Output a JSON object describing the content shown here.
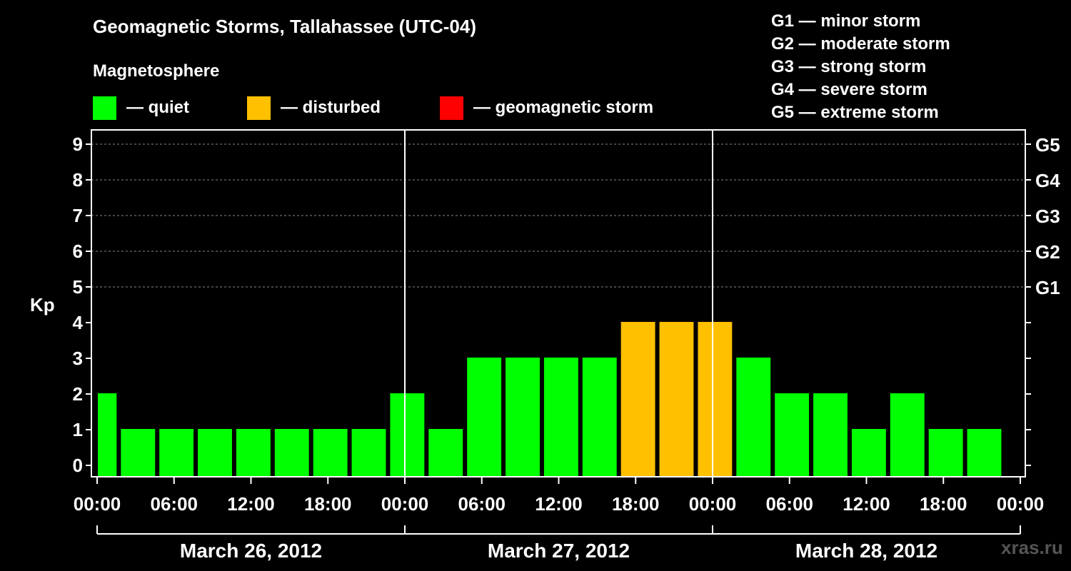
{
  "title": "Geomagnetic Storms, Tallahassee (UTC-04)",
  "magnetosphere_label": "Magnetosphere",
  "legend": [
    {
      "label": "— quiet",
      "color": "#00ff00"
    },
    {
      "label": "— disturbed",
      "color": "#ffc000"
    },
    {
      "label": "— geomagnetic storm",
      "color": "#ff0000"
    }
  ],
  "g_scale": [
    "G1 — minor storm",
    "G2 — moderate storm",
    "G3 — strong storm",
    "G4 — severe storm",
    "G5 — extreme storm"
  ],
  "watermark": "xras.ru",
  "colors": {
    "quiet": "#00ff00",
    "disturbed": "#ffc000",
    "storm": "#ff0000",
    "background": "#000000",
    "grid": "#888888"
  },
  "chart_data": {
    "type": "bar",
    "ylabel": "Kp",
    "ylim": [
      0,
      9
    ],
    "yticks": [
      "0",
      "1",
      "2",
      "3",
      "4",
      "5",
      "6",
      "7",
      "8",
      "9"
    ],
    "right_ticks": [
      {
        "kp": 5,
        "label": "G1"
      },
      {
        "kp": 6,
        "label": "G2"
      },
      {
        "kp": 7,
        "label": "G3"
      },
      {
        "kp": 8,
        "label": "G4"
      },
      {
        "kp": 9,
        "label": "G5"
      }
    ],
    "grid": "dashed at Kp 5-9",
    "x_tick_labels": [
      "00:00",
      "06:00",
      "12:00",
      "18:00",
      "00:00",
      "06:00",
      "12:00",
      "18:00",
      "00:00",
      "06:00",
      "12:00",
      "18:00",
      "00:00"
    ],
    "x_range_hours": [
      0,
      72
    ],
    "day_labels": [
      "March 26, 2012",
      "March 27, 2012",
      "March 28, 2012"
    ],
    "bars": [
      {
        "start_hour": 0,
        "end_hour": 1.8,
        "kp": 2,
        "status": "quiet"
      },
      {
        "start_hour": 1.8,
        "end_hour": 4.8,
        "kp": 1,
        "status": "quiet"
      },
      {
        "start_hour": 4.8,
        "end_hour": 7.8,
        "kp": 1,
        "status": "quiet"
      },
      {
        "start_hour": 7.8,
        "end_hour": 10.8,
        "kp": 1,
        "status": "quiet"
      },
      {
        "start_hour": 10.8,
        "end_hour": 13.8,
        "kp": 1,
        "status": "quiet"
      },
      {
        "start_hour": 13.8,
        "end_hour": 16.8,
        "kp": 1,
        "status": "quiet"
      },
      {
        "start_hour": 16.8,
        "end_hour": 19.8,
        "kp": 1,
        "status": "quiet"
      },
      {
        "start_hour": 19.8,
        "end_hour": 22.8,
        "kp": 1,
        "status": "quiet"
      },
      {
        "start_hour": 22.8,
        "end_hour": 25.8,
        "kp": 2,
        "status": "quiet"
      },
      {
        "start_hour": 25.8,
        "end_hour": 28.8,
        "kp": 1,
        "status": "quiet"
      },
      {
        "start_hour": 28.8,
        "end_hour": 31.8,
        "kp": 3,
        "status": "quiet"
      },
      {
        "start_hour": 31.8,
        "end_hour": 34.8,
        "kp": 3,
        "status": "quiet"
      },
      {
        "start_hour": 34.8,
        "end_hour": 37.8,
        "kp": 3,
        "status": "quiet"
      },
      {
        "start_hour": 37.8,
        "end_hour": 40.8,
        "kp": 3,
        "status": "quiet"
      },
      {
        "start_hour": 40.8,
        "end_hour": 43.8,
        "kp": 4,
        "status": "disturbed"
      },
      {
        "start_hour": 43.8,
        "end_hour": 46.8,
        "kp": 4,
        "status": "disturbed"
      },
      {
        "start_hour": 46.8,
        "end_hour": 49.8,
        "kp": 4,
        "status": "disturbed"
      },
      {
        "start_hour": 49.8,
        "end_hour": 52.8,
        "kp": 3,
        "status": "quiet"
      },
      {
        "start_hour": 52.8,
        "end_hour": 55.8,
        "kp": 2,
        "status": "quiet"
      },
      {
        "start_hour": 55.8,
        "end_hour": 58.8,
        "kp": 2,
        "status": "quiet"
      },
      {
        "start_hour": 58.8,
        "end_hour": 61.8,
        "kp": 1,
        "status": "quiet"
      },
      {
        "start_hour": 61.8,
        "end_hour": 64.8,
        "kp": 2,
        "status": "quiet"
      },
      {
        "start_hour": 64.8,
        "end_hour": 67.8,
        "kp": 1,
        "status": "quiet"
      },
      {
        "start_hour": 67.8,
        "end_hour": 70.8,
        "kp": 1,
        "status": "quiet"
      }
    ]
  }
}
